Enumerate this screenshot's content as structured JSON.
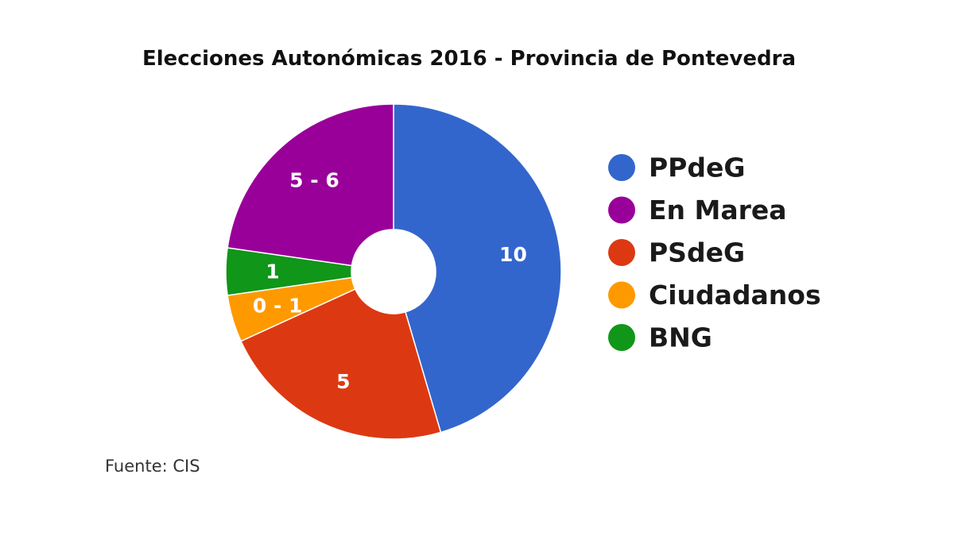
{
  "chart_data": {
    "type": "pie",
    "title": "Elecciones Autonómicas 2016 - Provincia de Pontevedra",
    "donut": true,
    "legend_position": "right",
    "slices": [
      {
        "name": "PPdeG",
        "value": 10,
        "label": "10",
        "color": "#3366cc"
      },
      {
        "name": "PSdeG",
        "value": 5,
        "label": "5",
        "color": "#dc3912"
      },
      {
        "name": "Ciudadanos",
        "value": 1,
        "label": "0 - 1",
        "color": "#ff9900"
      },
      {
        "name": "BNG",
        "value": 1,
        "label": "1",
        "color": "#109618"
      },
      {
        "name": "En Marea",
        "value": 5,
        "label": "5 - 6",
        "color": "#990099"
      }
    ],
    "legend_order": [
      "PPdeG",
      "En Marea",
      "PSdeG",
      "Ciudadanos",
      "BNG"
    ]
  },
  "source": "Fuente: CIS"
}
